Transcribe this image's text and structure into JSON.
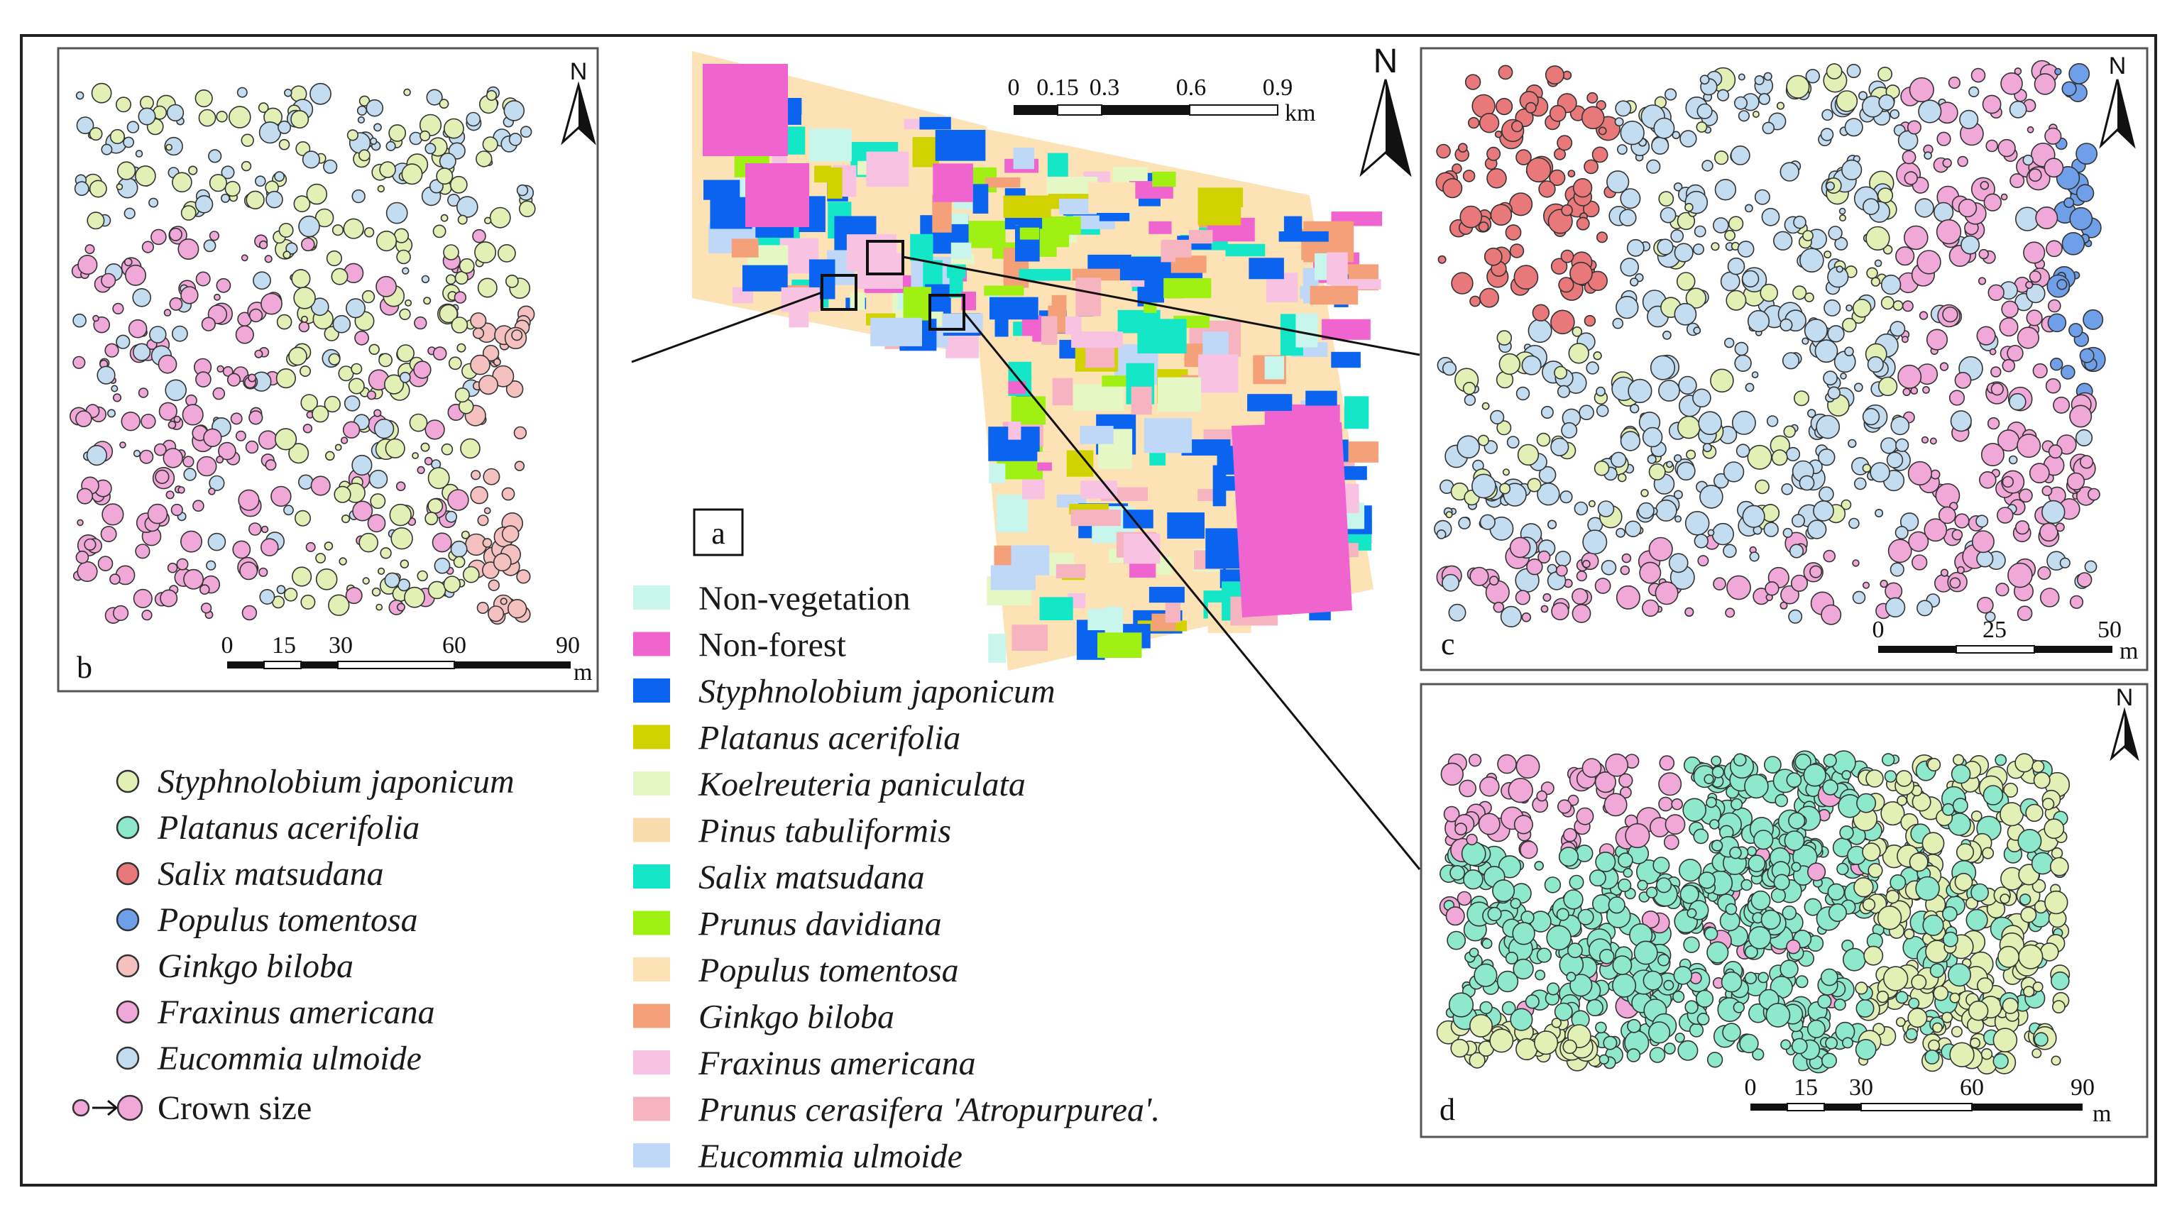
{
  "panels": {
    "a": {
      "label": "a",
      "scale": {
        "ticks": [
          "0",
          "0.15",
          "0.3",
          "0.6",
          "0.9"
        ],
        "unit": "km"
      },
      "north": "N"
    },
    "b": {
      "label": "b",
      "scale": {
        "ticks": [
          "0",
          "15",
          "30",
          "60",
          "90"
        ],
        "unit": "m"
      },
      "north": "N"
    },
    "c": {
      "label": "c",
      "scale": {
        "ticks": [
          "0",
          "25",
          "50"
        ],
        "unit": "m"
      },
      "north": "N"
    },
    "d": {
      "label": "d",
      "scale": {
        "ticks": [
          "0",
          "15",
          "30",
          "60",
          "90"
        ],
        "unit": "m"
      },
      "north": "N"
    }
  },
  "legend_crowns": [
    {
      "name": "Styphnolobium japonicum",
      "color": "#e2f0b5"
    },
    {
      "name": "Platanus acerifolia",
      "color": "#8de8cc"
    },
    {
      "name": "Salix matsudana",
      "color": "#e8787a"
    },
    {
      "name": "Populus tomentosa",
      "color": "#6f9fe8"
    },
    {
      "name": "Ginkgo biloba",
      "color": "#f4c0c0"
    },
    {
      "name": "Fraxinus americana",
      "color": "#f0a8d8"
    },
    {
      "name": "Eucommia ulmoide",
      "color": "#c4dcf0"
    }
  ],
  "crown_size_label": "Crown size",
  "legend_classes": [
    {
      "name": "Non-vegetation",
      "italic": false,
      "color": "#c8f5ec"
    },
    {
      "name": "Non-forest",
      "italic": false,
      "color": "#f064d0"
    },
    {
      "name": "Styphnolobium japonicum",
      "italic": true,
      "color": "#0a64f0"
    },
    {
      "name": "Platanus acerifolia",
      "italic": true,
      "color": "#d2d200"
    },
    {
      "name": "Koelreuteria paniculata",
      "italic": true,
      "color": "#e4f7c4"
    },
    {
      "name": "Pinus tabuliformis",
      "italic": true,
      "color": "#f8dcac"
    },
    {
      "name": "Salix matsudana",
      "italic": true,
      "color": "#14e6c8"
    },
    {
      "name": "Prunus davidiana",
      "italic": true,
      "color": "#a0f014"
    },
    {
      "name": "Populus tomentosa",
      "italic": true,
      "color": "#fce2b4"
    },
    {
      "name": "Ginkgo biloba",
      "italic": true,
      "color": "#f4a078"
    },
    {
      "name": "Fraxinus americana",
      "italic": true,
      "color": "#f8c2e2"
    },
    {
      "name": "Prunus cerasifera 'Atropurpurea'.",
      "italic": true,
      "color": "#f6b4c0"
    },
    {
      "name": "Eucommia ulmoide",
      "italic": true,
      "color": "#c0d8f8"
    }
  ]
}
